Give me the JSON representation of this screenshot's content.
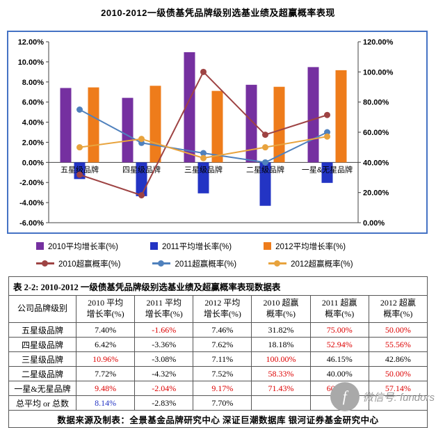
{
  "page": {
    "title": "2010-2012一级债基凭品牌级别选基业绩及超赢概率表现"
  },
  "chart_data": {
    "type": "combo",
    "title": "2010-2012一级债基凭品牌级别选基业绩及超赢概率表现",
    "grid": false,
    "legend_position": "bottom",
    "categories": [
      "五星级品牌",
      "四星级品牌",
      "三星级品牌",
      "二星级品牌",
      "一星&无星品牌"
    ],
    "left_axis": {
      "min": -6,
      "max": 12,
      "step": 2,
      "ticks": [
        "12.00%",
        "10.00%",
        "8.00%",
        "6.00%",
        "4.00%",
        "2.00%",
        "0.00%",
        "-2.00%",
        "-4.00%",
        "-6.00%"
      ]
    },
    "right_axis": {
      "min": 0,
      "max": 120,
      "step": 20,
      "ticks": [
        "120.00%",
        "100.00%",
        "80.00%",
        "60.00%",
        "40.00%",
        "20.00%",
        "0.00%"
      ]
    },
    "bar_series": [
      {
        "name": "2010平均增长率(%)",
        "color": "#7530A0",
        "values": [
          7.4,
          6.42,
          10.96,
          7.72,
          9.48
        ]
      },
      {
        "name": "2011平均增长率(%)",
        "color": "#2334C4",
        "values": [
          -1.66,
          -3.36,
          -3.08,
          -4.32,
          -2.04
        ]
      },
      {
        "name": "2012平均增长率(%)",
        "color": "#EE7C1B",
        "values": [
          7.46,
          7.62,
          7.11,
          7.52,
          9.17
        ]
      }
    ],
    "line_series": [
      {
        "name": "2010超赢概率(%)",
        "color": "#9E4343",
        "values": [
          31.82,
          18.18,
          100.0,
          58.33,
          71.43
        ]
      },
      {
        "name": "2011超赢概率(%)",
        "color": "#4F81BD",
        "values": [
          75.0,
          52.94,
          46.15,
          40.0,
          60.0
        ]
      },
      {
        "name": "2012超赢概率(%)",
        "color": "#E8A33D",
        "values": [
          50.0,
          55.56,
          42.86,
          50.0,
          57.14
        ]
      }
    ]
  },
  "table": {
    "title": "表 2-2: 2010-2012 一级债基凭品牌级别选基业绩及超赢概率表现数据表",
    "columns": [
      "公司品牌级别",
      "2010 平均\n增长率(%)",
      "2011 平均\n增长率(%)",
      "2012 平均\n增长率(%)",
      "2010 超赢\n概率(%)",
      "2011 超赢\n概率(%)",
      "2012 超赢\n概率(%)"
    ],
    "rows": [
      {
        "label": "五星级品牌",
        "values": [
          {
            "t": "7.40%",
            "c": "#000000"
          },
          {
            "t": "-1.66%",
            "c": "#DD0000"
          },
          {
            "t": "7.46%",
            "c": "#000000"
          },
          {
            "t": "31.82%",
            "c": "#000000"
          },
          {
            "t": "75.00%",
            "c": "#DD0000"
          },
          {
            "t": "50.00%",
            "c": "#DD0000"
          }
        ]
      },
      {
        "label": "四星级品牌",
        "values": [
          {
            "t": "6.42%",
            "c": "#000000"
          },
          {
            "t": "-3.36%",
            "c": "#000000"
          },
          {
            "t": "7.62%",
            "c": "#000000"
          },
          {
            "t": "18.18%",
            "c": "#000000"
          },
          {
            "t": "52.94%",
            "c": "#DD0000"
          },
          {
            "t": "55.56%",
            "c": "#DD0000"
          }
        ]
      },
      {
        "label": "三星级品牌",
        "values": [
          {
            "t": "10.96%",
            "c": "#DD0000"
          },
          {
            "t": "-3.08%",
            "c": "#000000"
          },
          {
            "t": "7.11%",
            "c": "#000000"
          },
          {
            "t": "100.00%",
            "c": "#DD0000"
          },
          {
            "t": "46.15%",
            "c": "#000000"
          },
          {
            "t": "42.86%",
            "c": "#000000"
          }
        ]
      },
      {
        "label": "二星级品牌",
        "values": [
          {
            "t": "7.72%",
            "c": "#000000"
          },
          {
            "t": "-4.32%",
            "c": "#000000"
          },
          {
            "t": "7.52%",
            "c": "#000000"
          },
          {
            "t": "58.33%",
            "c": "#DD0000"
          },
          {
            "t": "40.00%",
            "c": "#000000"
          },
          {
            "t": "50.00%",
            "c": "#DD0000"
          }
        ]
      },
      {
        "label": "一星&无星品牌",
        "values": [
          {
            "t": "9.48%",
            "c": "#DD0000"
          },
          {
            "t": "-2.04%",
            "c": "#DD0000"
          },
          {
            "t": "9.17%",
            "c": "#DD0000"
          },
          {
            "t": "71.43%",
            "c": "#DD0000"
          },
          {
            "t": "60.00%",
            "c": "#DD0000"
          },
          {
            "t": "57.14%",
            "c": "#DD0000"
          }
        ]
      },
      {
        "label": "总平均 or 总数",
        "values": [
          {
            "t": "8.14%",
            "c": "#2334C4"
          },
          {
            "t": "-2.83%",
            "c": "#000000"
          },
          {
            "t": "7.70%",
            "c": "#000000"
          },
          {
            "t": "",
            "c": "#000000"
          },
          {
            "t": "",
            "c": "#000000"
          },
          {
            "t": "",
            "c": "#000000"
          }
        ]
      }
    ],
    "footer": "数据来源及制表：全景基金品牌研究中心  深证巨潮数据库  银河证券基金研究中心"
  },
  "watermark": {
    "text": "微信号: fundors",
    "logo_glyph": "f"
  }
}
